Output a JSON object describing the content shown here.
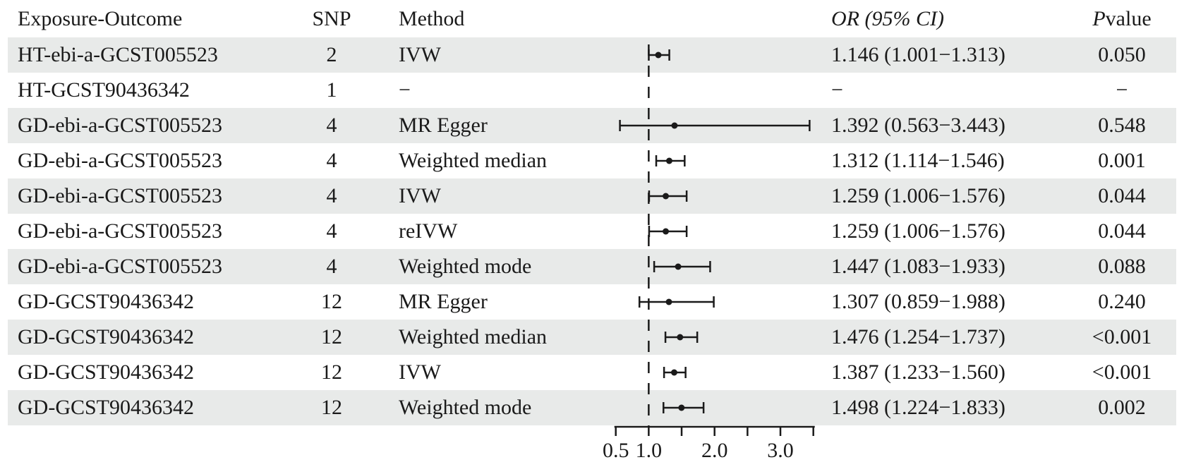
{
  "table": {
    "columns": {
      "exposure": "Exposure-Outcome",
      "snp": "SNP",
      "method": "Method",
      "or_ci": "OR (95% CI)",
      "p_prefix": "P",
      "p_suffix": " value"
    },
    "rows": [
      {
        "exposure": "HT-ebi-a-GCST005523",
        "snp": "2",
        "method": "IVW",
        "or_ci": "1.146 (1.001−1.313)",
        "p": "0.050"
      },
      {
        "exposure": "HT-GCST90436342",
        "snp": "1",
        "method": "−",
        "or_ci": "−",
        "p": "−"
      },
      {
        "exposure": "GD-ebi-a-GCST005523",
        "snp": "4",
        "method": "MR Egger",
        "or_ci": "1.392 (0.563−3.443)",
        "p": "0.548"
      },
      {
        "exposure": "GD-ebi-a-GCST005523",
        "snp": "4",
        "method": "Weighted median",
        "or_ci": "1.312 (1.114−1.546)",
        "p": "0.001"
      },
      {
        "exposure": "GD-ebi-a-GCST005523",
        "snp": "4",
        "method": "IVW",
        "or_ci": "1.259 (1.006−1.576)",
        "p": "0.044"
      },
      {
        "exposure": "GD-ebi-a-GCST005523",
        "snp": "4",
        "method": "reIVW",
        "or_ci": "1.259 (1.006−1.576)",
        "p": "0.044"
      },
      {
        "exposure": "GD-ebi-a-GCST005523",
        "snp": "4",
        "method": "Weighted mode",
        "or_ci": "1.447 (1.083−1.933)",
        "p": "0.088"
      },
      {
        "exposure": "GD-GCST90436342",
        "snp": "12",
        "method": "MR Egger",
        "or_ci": "1.307 (0.859−1.988)",
        "p": "0.240"
      },
      {
        "exposure": "GD-GCST90436342",
        "snp": "12",
        "method": "Weighted median",
        "or_ci": "1.476 (1.254−1.737)",
        "p": "<0.001"
      },
      {
        "exposure": "GD-GCST90436342",
        "snp": "12",
        "method": "IVW",
        "or_ci": "1.387 (1.233−1.560)",
        "p": "<0.001"
      },
      {
        "exposure": "GD-GCST90436342",
        "snp": "12",
        "method": "Weighted mode",
        "or_ci": "1.498 (1.224−1.833)",
        "p": "0.002"
      }
    ]
  },
  "chart_data": {
    "type": "forest",
    "scale": "linear",
    "xlabel": "",
    "axis": {
      "range": [
        0.5,
        3.5
      ],
      "ticks": [
        0.5,
        1.0,
        1.5,
        2.0,
        2.5,
        3.0,
        3.5
      ],
      "tick_labels": [
        "0.5",
        "1.0",
        "",
        "2.0",
        "",
        "3.0",
        ""
      ],
      "reference_line": 1.0,
      "reference_style": "dashed"
    },
    "points": [
      {
        "or": 1.146,
        "lo": 1.001,
        "hi": 1.313
      },
      null,
      {
        "or": 1.392,
        "lo": 0.563,
        "hi": 3.443
      },
      {
        "or": 1.312,
        "lo": 1.114,
        "hi": 1.546
      },
      {
        "or": 1.259,
        "lo": 1.006,
        "hi": 1.576
      },
      {
        "or": 1.259,
        "lo": 1.006,
        "hi": 1.576
      },
      {
        "or": 1.447,
        "lo": 1.083,
        "hi": 1.933
      },
      {
        "or": 1.307,
        "lo": 0.859,
        "hi": 1.988
      },
      {
        "or": 1.476,
        "lo": 1.254,
        "hi": 1.737
      },
      {
        "or": 1.387,
        "lo": 1.233,
        "hi": 1.56
      },
      {
        "or": 1.498,
        "lo": 1.224,
        "hi": 1.833
      }
    ]
  },
  "colors": {
    "stripe": "#e8eae9",
    "text": "#1a1a1a",
    "line": "#1a1a1a"
  }
}
